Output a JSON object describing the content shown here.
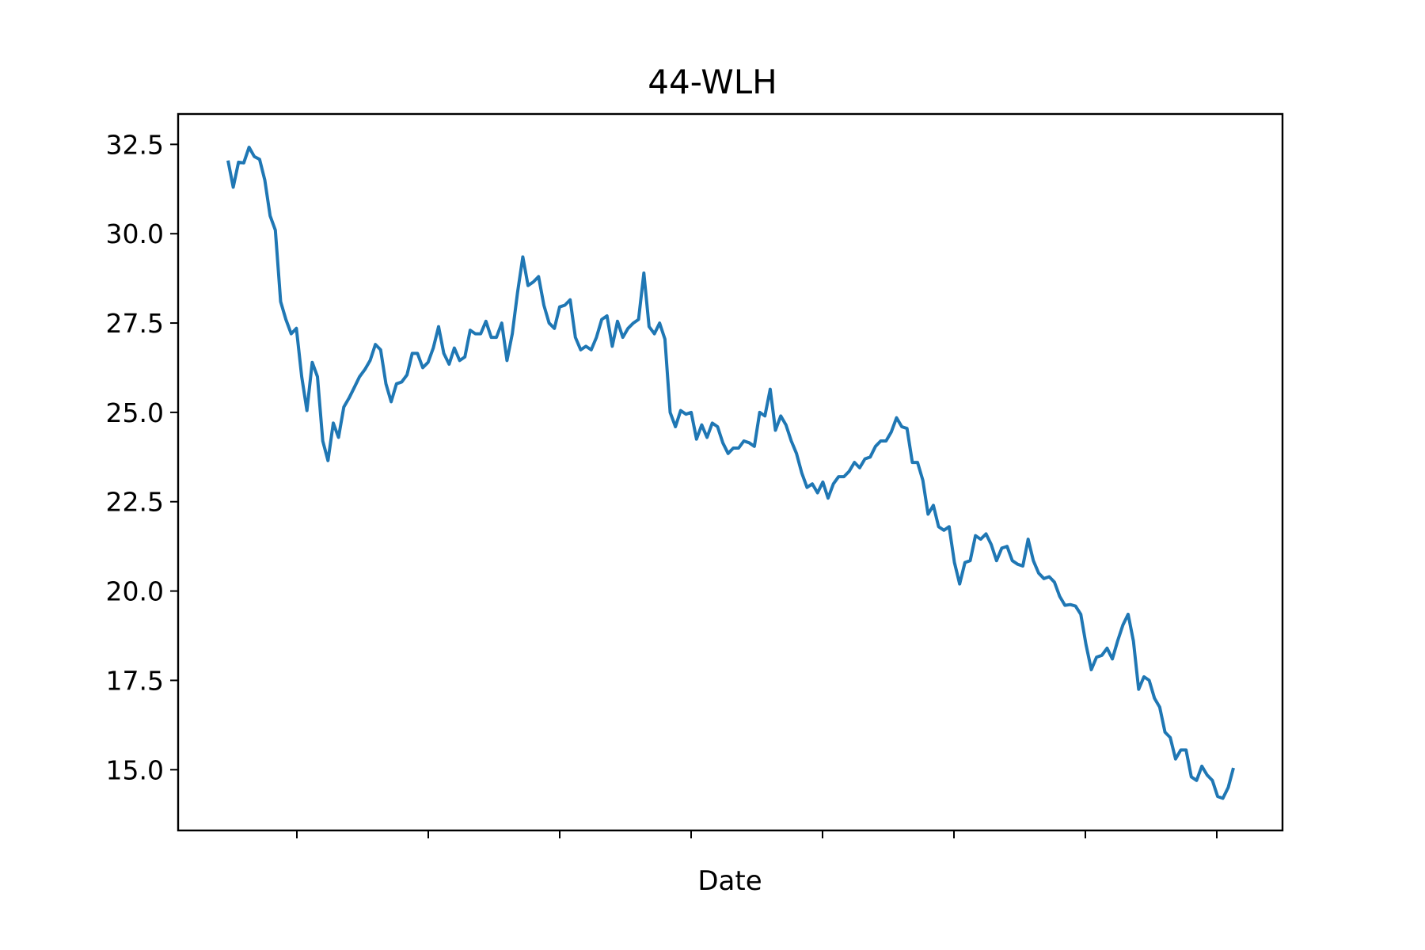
{
  "chart_data": {
    "type": "line",
    "title": "44-WLH",
    "xlabel": "Date",
    "ylabel": "",
    "ylim": [
      13.3,
      33.35
    ],
    "yticks": [
      15.0,
      17.5,
      20.0,
      22.5,
      25.0,
      27.5,
      30.0,
      32.5
    ],
    "ytick_labels": [
      "15.0",
      "17.5",
      "20.0",
      "22.5",
      "25.0",
      "27.5",
      "30.0",
      "32.5"
    ],
    "x_tick_count": 8,
    "grid": false,
    "series": [
      {
        "name": "44-WLH",
        "color": "#1f77b4",
        "values": [
          32.05,
          31.3,
          32.0,
          31.98,
          32.42,
          32.16,
          32.08,
          31.5,
          30.5,
          30.1,
          28.1,
          27.6,
          27.2,
          27.35,
          26.0,
          25.05,
          26.4,
          26.0,
          24.2,
          23.65,
          24.7,
          24.3,
          25.15,
          25.4,
          25.7,
          26.0,
          26.2,
          26.45,
          26.9,
          26.75,
          25.8,
          25.3,
          25.8,
          25.85,
          26.05,
          26.65,
          26.65,
          26.25,
          26.4,
          26.8,
          27.4,
          26.65,
          26.35,
          26.8,
          26.45,
          26.55,
          27.3,
          27.2,
          27.2,
          27.55,
          27.1,
          27.1,
          27.5,
          26.45,
          27.2,
          28.35,
          29.35,
          28.55,
          28.65,
          28.8,
          28.0,
          27.5,
          27.35,
          27.95,
          28.0,
          28.15,
          27.1,
          26.75,
          26.85,
          26.75,
          27.1,
          27.6,
          27.7,
          26.85,
          27.55,
          27.1,
          27.35,
          27.5,
          27.6,
          28.9,
          27.4,
          27.2,
          27.5,
          27.05,
          25.0,
          24.6,
          25.05,
          24.95,
          25.0,
          24.25,
          24.65,
          24.3,
          24.7,
          24.6,
          24.15,
          23.85,
          24.0,
          24.0,
          24.2,
          24.15,
          24.05,
          25.0,
          24.9,
          25.65,
          24.5,
          24.9,
          24.65,
          24.2,
          23.85,
          23.3,
          22.9,
          23.0,
          22.75,
          23.05,
          22.6,
          23.0,
          23.2,
          23.2,
          23.35,
          23.6,
          23.45,
          23.7,
          23.75,
          24.05,
          24.2,
          24.2,
          24.45,
          24.85,
          24.6,
          24.55,
          23.6,
          23.6,
          23.1,
          22.15,
          22.4,
          21.8,
          21.7,
          21.8,
          20.8,
          20.2,
          20.8,
          20.85,
          21.55,
          21.45,
          21.6,
          21.3,
          20.85,
          21.2,
          21.25,
          20.85,
          20.75,
          20.7,
          21.45,
          20.85,
          20.5,
          20.35,
          20.4,
          20.25,
          19.85,
          19.6,
          19.62,
          19.58,
          19.35,
          18.5,
          17.8,
          18.15,
          18.2,
          18.4,
          18.1,
          18.6,
          19.05,
          19.35,
          18.6,
          17.25,
          17.6,
          17.5,
          17.0,
          16.75,
          16.05,
          15.9,
          15.3,
          15.55,
          15.55,
          14.8,
          14.7,
          15.1,
          14.85,
          14.7,
          14.25,
          14.2,
          14.5,
          15.05
        ]
      }
    ]
  }
}
